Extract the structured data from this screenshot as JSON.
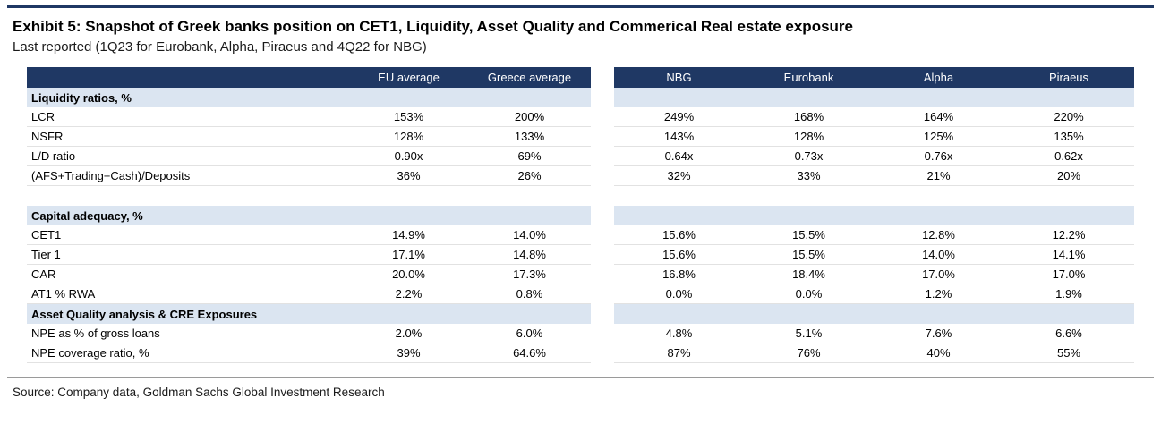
{
  "source_note": "Source: Company data, Goldman Sachs Global Investment Research",
  "colors": {
    "header_bg": "#1f3864",
    "section_bg": "#dbe5f1",
    "rule_color": "#1f3864"
  },
  "chart_data": {
    "type": "table",
    "title": "Exhibit 5: Snapshot of Greek banks position on CET1, Liquidity, Asset Quality and Commerical Real estate exposure",
    "subtitle": "Last reported (1Q23 for Eurobank, Alpha, Piraeus and 4Q22 for NBG)",
    "columns": {
      "left": [
        "EU average",
        "Greece average"
      ],
      "right": [
        "NBG",
        "Eurobank",
        "Alpha",
        "Piraeus"
      ]
    },
    "sections": [
      {
        "label": "Liquidity ratios, %",
        "gap_after": true,
        "rows": [
          {
            "label": "LCR",
            "left": [
              "153%",
              "200%"
            ],
            "right": [
              "249%",
              "168%",
              "164%",
              "220%"
            ]
          },
          {
            "label": "NSFR",
            "left": [
              "128%",
              "133%"
            ],
            "right": [
              "143%",
              "128%",
              "125%",
              "135%"
            ]
          },
          {
            "label": "L/D ratio",
            "left": [
              "0.90x",
              "69%"
            ],
            "right": [
              "0.64x",
              "0.73x",
              "0.76x",
              "0.62x"
            ]
          },
          {
            "label": "(AFS+Trading+Cash)/Deposits",
            "left": [
              "36%",
              "26%"
            ],
            "right": [
              "32%",
              "33%",
              "21%",
              "20%"
            ]
          }
        ]
      },
      {
        "label": "Capital adequacy, %",
        "gap_after": false,
        "rows": [
          {
            "label": "CET1",
            "left": [
              "14.9%",
              "14.0%"
            ],
            "right": [
              "15.6%",
              "15.5%",
              "12.8%",
              "12.2%"
            ]
          },
          {
            "label": "Tier 1",
            "left": [
              "17.1%",
              "14.8%"
            ],
            "right": [
              "15.6%",
              "15.5%",
              "14.0%",
              "14.1%"
            ]
          },
          {
            "label": "CAR",
            "left": [
              "20.0%",
              "17.3%"
            ],
            "right": [
              "16.8%",
              "18.4%",
              "17.0%",
              "17.0%"
            ]
          },
          {
            "label": "AT1 % RWA",
            "left": [
              "2.2%",
              "0.8%"
            ],
            "right": [
              "0.0%",
              "0.0%",
              "1.2%",
              "1.9%"
            ]
          }
        ]
      },
      {
        "label": "Asset Quality analysis & CRE Exposures",
        "gap_after": false,
        "rows": [
          {
            "label": "NPE as % of gross loans",
            "left": [
              "2.0%",
              "6.0%"
            ],
            "right": [
              "4.8%",
              "5.1%",
              "7.6%",
              "6.6%"
            ]
          },
          {
            "label": "NPE coverage ratio, %",
            "left": [
              "39%",
              "64.6%"
            ],
            "right": [
              "87%",
              "76%",
              "40%",
              "55%"
            ]
          }
        ]
      }
    ]
  }
}
